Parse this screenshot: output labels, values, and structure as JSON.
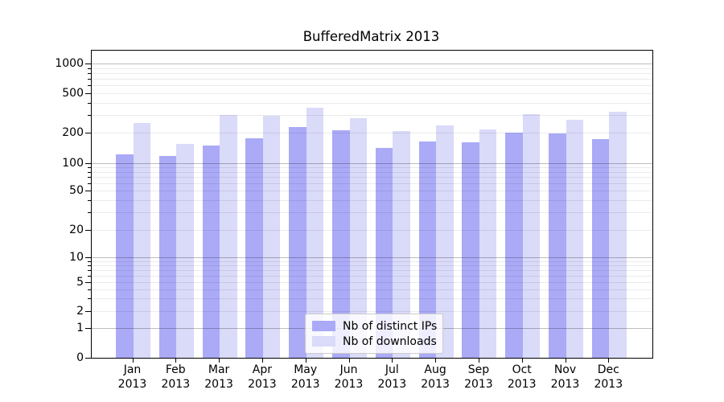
{
  "title": "BufferedMatrix 2013",
  "legend": {
    "items": [
      {
        "label": "Nb of distinct IPs"
      },
      {
        "label": "Nb of downloads"
      }
    ]
  },
  "colors": {
    "distinct_ips_bar": "#aaaaf7",
    "downloads_bar": "#dadaf9",
    "axis_line": "#000000",
    "grid_major": "#bdbdbd",
    "grid_minor": "#ebebeb",
    "text": "#000000",
    "legend_border": "#cccccc",
    "background": "#ffffff"
  },
  "chart_data": {
    "type": "bar",
    "title": "BufferedMatrix 2013",
    "categories": [
      "Jan 2013",
      "Feb 2013",
      "Mar 2013",
      "Apr 2013",
      "May 2013",
      "Jun 2013",
      "Jul 2013",
      "Aug 2013",
      "Sep 2013",
      "Oct 2013",
      "Nov 2013",
      "Dec 2013"
    ],
    "series": [
      {
        "name": "Nb of distinct IPs",
        "color": "#aaaaf7",
        "values": [
          121,
          118,
          150,
          175,
          230,
          212,
          140,
          164,
          161,
          201,
          196,
          174
        ]
      },
      {
        "name": "Nb of downloads",
        "color": "#dadaf9",
        "values": [
          248,
          154,
          299,
          294,
          356,
          280,
          208,
          237,
          215,
          308,
          268,
          324
        ]
      }
    ],
    "xlabel": "",
    "ylabel": "",
    "yscale": "symlog",
    "y_ticks": [
      0,
      1,
      2,
      5,
      10,
      20,
      50,
      100,
      200,
      500,
      1000
    ],
    "ylim": [
      0,
      1350
    ],
    "grid": "major and minor horizontal gridlines, drawn over bars",
    "legend_position": "inside axes, lower center"
  }
}
